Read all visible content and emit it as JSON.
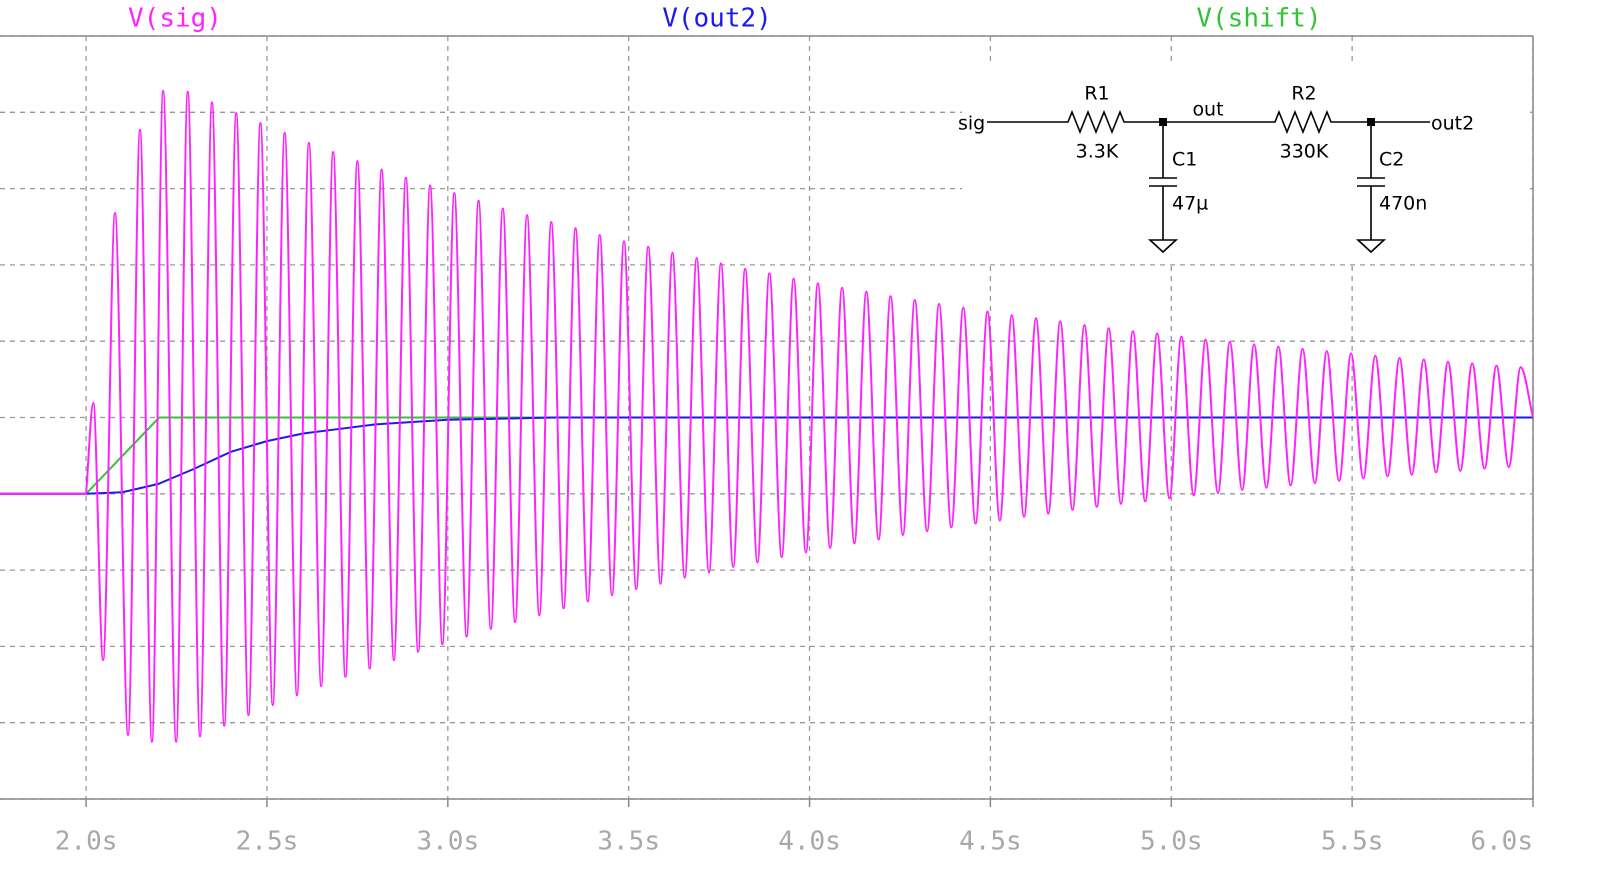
{
  "chart_data": {
    "type": "line",
    "xlim": [
      1.762,
      6.0
    ],
    "xticks": [
      {
        "value": 2.0,
        "label": "2.0s"
      },
      {
        "value": 2.5,
        "label": "2.5s"
      },
      {
        "value": 3.0,
        "label": "3.0s"
      },
      {
        "value": 3.5,
        "label": "3.5s"
      },
      {
        "value": 4.0,
        "label": "4.0s"
      },
      {
        "value": 4.5,
        "label": "4.5s"
      },
      {
        "value": 5.0,
        "label": "5.0s"
      },
      {
        "value": 5.5,
        "label": "5.5s"
      },
      {
        "value": 6.0,
        "label": "6.0s"
      }
    ],
    "ylim": [
      -4,
      6
    ],
    "yticks": [
      -4,
      -3,
      -2,
      -1,
      0,
      1,
      2,
      3,
      4,
      5,
      6
    ],
    "ytick_labels": false,
    "grid": true,
    "series": [
      {
        "name": "V(sig)",
        "color": "#ff22ff",
        "x": [
          1.762,
          2.0,
          2.02,
          2.047,
          2.08,
          2.116,
          2.149,
          2.182,
          2.213,
          2.249,
          2.281,
          2.315,
          2.348,
          2.382,
          2.415,
          2.449,
          2.482,
          2.516,
          2.549,
          2.583,
          2.616,
          2.65,
          2.683,
          2.717,
          2.75,
          2.784,
          2.817,
          2.851,
          2.884,
          2.918,
          2.951,
          2.985,
          3.018,
          3.052,
          3.085,
          3.119,
          3.152,
          3.186,
          3.219,
          3.253,
          3.286,
          3.32,
          3.353,
          3.387,
          3.42,
          3.454,
          3.487,
          3.521,
          3.554,
          3.588,
          3.621,
          3.655,
          3.688,
          3.722,
          3.755,
          3.789,
          3.822,
          3.856,
          3.889,
          3.923,
          3.956,
          3.99,
          4.023,
          4.057,
          4.09,
          4.124,
          4.157,
          4.191,
          4.224,
          4.258,
          4.291,
          4.325,
          4.358,
          4.392,
          4.425,
          4.459,
          4.492,
          4.526,
          4.559,
          4.593,
          4.626,
          4.66,
          4.693,
          4.727,
          4.76,
          4.794,
          4.827,
          4.861,
          4.894,
          4.928,
          4.961,
          4.995,
          5.028,
          5.062,
          5.095,
          5.129,
          5.162,
          5.196,
          5.229,
          5.263,
          5.296,
          5.33,
          5.363,
          5.397,
          5.43,
          5.464,
          5.497,
          5.531,
          5.564,
          5.598,
          5.631,
          5.665,
          5.698,
          5.732,
          5.765,
          5.799,
          5.832,
          5.866,
          5.899,
          5.933,
          5.966,
          6.0
        ],
        "values": [
          0,
          0,
          1.19,
          -2.18,
          3.68,
          -3.16,
          4.77,
          -3.25,
          5.28,
          -3.25,
          5.27,
          -3.18,
          5.13,
          -3.04,
          4.99,
          -2.9,
          4.86,
          -2.77,
          4.73,
          -2.64,
          4.6,
          -2.52,
          4.48,
          -2.4,
          4.36,
          -2.29,
          4.25,
          -2.18,
          4.14,
          -2.07,
          4.04,
          -1.97,
          3.94,
          -1.87,
          3.84,
          -1.77,
          3.74,
          -1.68,
          3.65,
          -1.59,
          3.56,
          -1.5,
          3.48,
          -1.41,
          3.39,
          -1.33,
          3.31,
          -1.25,
          3.24,
          -1.18,
          3.16,
          -1.1,
          3.09,
          -1.03,
          3.02,
          -0.96,
          2.95,
          -0.9,
          2.89,
          -0.83,
          2.82,
          -0.77,
          2.76,
          -0.71,
          2.7,
          -0.65,
          2.65,
          -0.6,
          2.59,
          -0.54,
          2.54,
          -0.49,
          2.49,
          -0.44,
          2.44,
          -0.39,
          2.39,
          -0.35,
          2.34,
          -0.3,
          2.3,
          -0.26,
          2.26,
          -0.21,
          2.21,
          -0.17,
          2.17,
          -0.13,
          2.13,
          -0.1,
          2.1,
          -0.06,
          2.06,
          -0.02,
          2.02,
          0.01,
          1.99,
          0.05,
          1.96,
          0.08,
          1.93,
          0.11,
          1.9,
          0.14,
          1.87,
          0.17,
          1.84,
          0.2,
          1.81,
          0.23,
          1.78,
          0.25,
          1.76,
          0.28,
          1.73,
          0.3,
          1.71,
          0.33,
          1.68,
          0.35,
          1.66,
          1.0
        ]
      },
      {
        "name": "V(out2)",
        "color": "#1a1aee",
        "x": [
          1.762,
          2.0,
          2.1,
          2.2,
          2.3,
          2.4,
          2.5,
          2.6,
          2.8,
          3.0,
          3.3,
          6.0
        ],
        "values": [
          0,
          0,
          0.02,
          0.13,
          0.33,
          0.55,
          0.69,
          0.79,
          0.91,
          0.97,
          1.0,
          1.0
        ]
      },
      {
        "name": "V(shift)",
        "color": "#33c433",
        "x": [
          1.762,
          2.0,
          2.202,
          6.0
        ],
        "values": [
          0,
          0,
          1,
          1
        ]
      }
    ]
  },
  "schematic": {
    "sig": "sig",
    "r1": "R1",
    "r1_value": "3.3K",
    "out": "out",
    "c1": "C1",
    "c1_value": "47µ",
    "r2": "R2",
    "r2_value": "330K",
    "c2": "C2",
    "c2_value": "470n",
    "out2": "out2"
  }
}
